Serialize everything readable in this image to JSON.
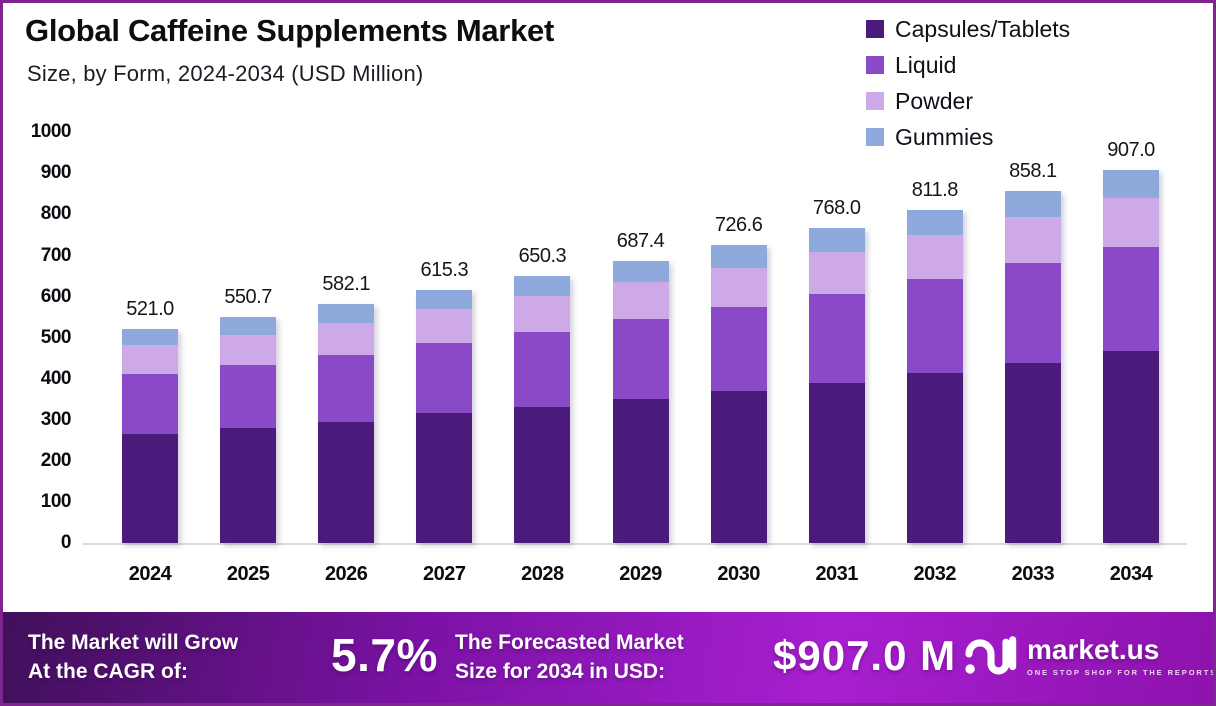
{
  "header": {
    "title": "Global Caffeine Supplements Market",
    "subtitle": "Size, by Form, 2024-2034 (USD Million)"
  },
  "colors": {
    "border": "#7e2590",
    "banner_gradient": [
      "#40105a",
      "#7c12a6",
      "#a81fd0",
      "#8d12ad"
    ]
  },
  "chart_data": {
    "type": "bar",
    "stacked": true,
    "title": "Global Caffeine Supplements Market",
    "subtitle": "Size, by Form, 2024-2034 (USD Million)",
    "xlabel": "",
    "ylabel": "USD Million",
    "ylim": [
      0,
      1000
    ],
    "grid": false,
    "legend_position": "top-right",
    "y_ticks": [
      1000,
      900,
      800,
      700,
      600,
      500,
      400,
      300,
      200,
      100,
      0
    ],
    "categories": [
      "2024",
      "2025",
      "2026",
      "2027",
      "2028",
      "2029",
      "2030",
      "2031",
      "2032",
      "2033",
      "2034"
    ],
    "series": [
      {
        "name": "Capsules/Tablets",
        "key": "capsules-tablets",
        "color": "#4a1b7a",
        "values": [
          266.5,
          280.0,
          294.5,
          315.5,
          331.5,
          349.5,
          370.0,
          390.5,
          414.5,
          437.5,
          467.5
        ]
      },
      {
        "name": "Liquid",
        "key": "liquid",
        "color": "#8a49c6",
        "values": [
          144.5,
          152.5,
          163.0,
          170.5,
          183.0,
          196.0,
          204.0,
          215.5,
          227.5,
          243.5,
          252.5
        ]
      },
      {
        "name": "Powder",
        "key": "powder",
        "color": "#cda9e8",
        "values": [
          70.5,
          74.5,
          79.0,
          83.0,
          86.0,
          91.0,
          96.0,
          101.5,
          108.0,
          112.0,
          119.0
        ]
      },
      {
        "name": "Gummies",
        "key": "gummies",
        "color": "#8ea9dc",
        "values": [
          39.5,
          43.7,
          45.6,
          46.3,
          49.8,
          50.9,
          56.6,
          60.5,
          61.8,
          65.1,
          68.0
        ]
      }
    ],
    "totals": [
      "521.0",
      "550.7",
      "582.1",
      "615.3",
      "650.3",
      "687.4",
      "726.6",
      "768.0",
      "811.8",
      "858.1",
      "907.0"
    ]
  },
  "banner": {
    "cagr_label_line1": "The Market will Grow",
    "cagr_label_line2": "At the CAGR of:",
    "cagr_value": "5.7%",
    "forecast_label_line1": "The Forecasted Market",
    "forecast_label_line2": "Size for 2034 in USD:",
    "forecast_value": "$907.0 M",
    "brand": {
      "name": "market.us",
      "tagline": "ONE STOP SHOP FOR THE REPORTS",
      "icon": "marketus-wave-logo"
    }
  }
}
